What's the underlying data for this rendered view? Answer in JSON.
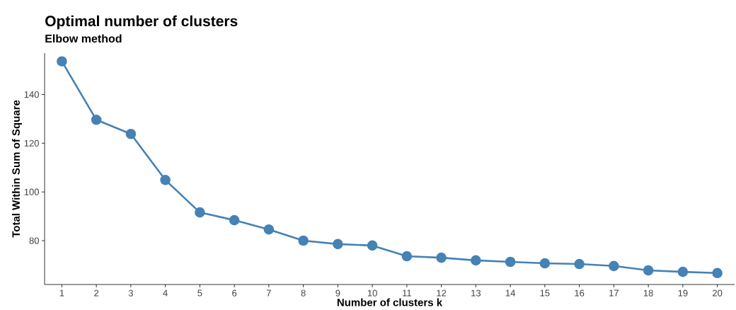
{
  "chart_data": {
    "type": "line",
    "title": "Optimal number of clusters",
    "subtitle": "Elbow method",
    "xlabel": "Number of clusters k",
    "ylabel": "Total Within Sum of Square",
    "categories": [
      "1",
      "2",
      "3",
      "4",
      "5",
      "6",
      "7",
      "8",
      "9",
      "10",
      "11",
      "12",
      "13",
      "14",
      "15",
      "16",
      "17",
      "18",
      "19",
      "20"
    ],
    "values": [
      153.6,
      129.6,
      123.8,
      104.9,
      91.6,
      88.4,
      84.6,
      80.0,
      78.6,
      78.0,
      73.6,
      73.0,
      71.9,
      71.3,
      70.7,
      70.4,
      69.6,
      67.8,
      67.2,
      66.7
    ],
    "color": "#4682b4",
    "ylim": [
      62,
      157
    ],
    "yticks": [
      80,
      100,
      120,
      140
    ],
    "grid": false,
    "marker": "circle",
    "line_style": "solid"
  }
}
